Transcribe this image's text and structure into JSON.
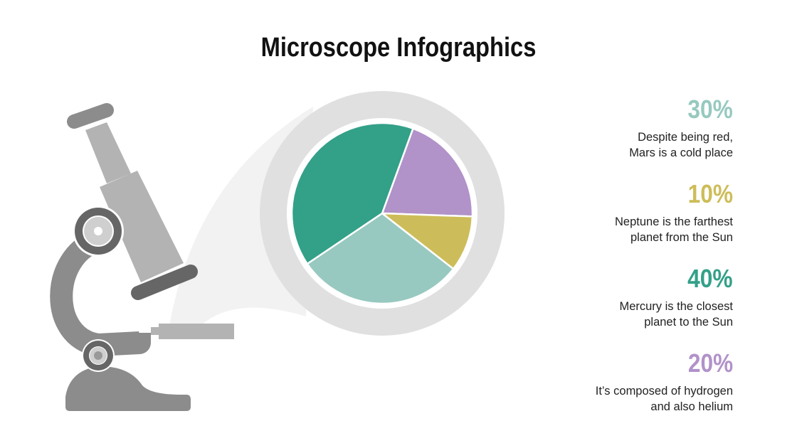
{
  "title": "Microscope Infographics",
  "colors": {
    "dark_teal": "#33a088",
    "light_teal": "#97c9c0",
    "yellow": "#cdbd5a",
    "purple": "#b192c9",
    "ring_gray": "#e0e0e0"
  },
  "chart_data": {
    "type": "pie",
    "slices": [
      {
        "label": "20%",
        "value": 20,
        "color": "#b192c9"
      },
      {
        "label": "10%",
        "value": 10,
        "color": "#cdbd5a"
      },
      {
        "label": "30%",
        "value": 30,
        "color": "#97c9c0"
      },
      {
        "label": "40%",
        "value": 40,
        "color": "#33a088"
      }
    ]
  },
  "items": [
    {
      "percent": "30%",
      "line1": "Despite being red,",
      "line2": "Mars is a cold place",
      "color": "#97c9c0"
    },
    {
      "percent": "10%",
      "line1": "Neptune is the farthest",
      "line2": "planet from the Sun",
      "color": "#cdbd5a"
    },
    {
      "percent": "40%",
      "line1": "Mercury is the closest",
      "line2": "planet to the Sun",
      "color": "#33a088"
    },
    {
      "percent": "20%",
      "line1": "It’s composed of hydrogen",
      "line2": "and also helium",
      "color": "#b192c9"
    }
  ]
}
